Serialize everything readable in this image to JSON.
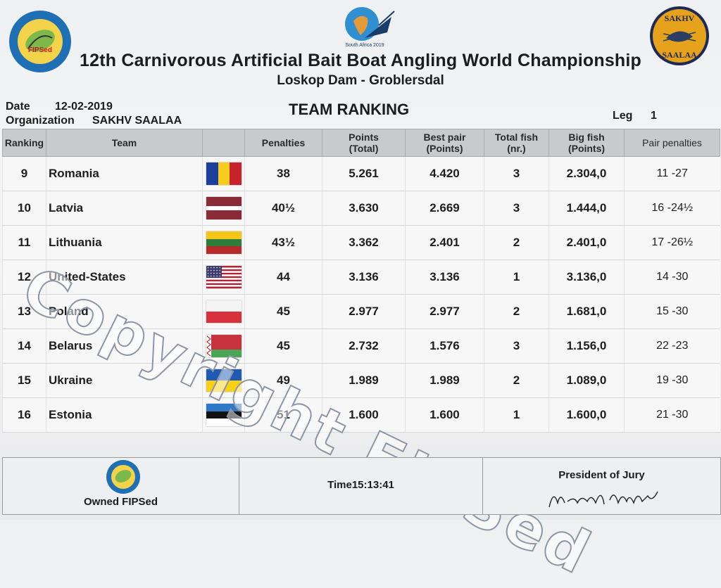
{
  "header": {
    "title": "12th Carnivorous Artificial Bait Boat Angling World Championship",
    "subtitle": "Loskop Dam - Groblersdal",
    "logo_left_text": "FIPSed",
    "logo_right_top": "SAKHV",
    "logo_right_bottom": "SAALAA",
    "logo_center_text": "South Africa 2019"
  },
  "meta": {
    "date_label": "Date",
    "date_value": "12-02-2019",
    "org_label": "Organization",
    "org_value": "SAKHV SAALAA",
    "heading": "TEAM RANKING",
    "leg_label": "Leg",
    "leg_value": "1"
  },
  "table": {
    "headers": {
      "ranking": "Ranking",
      "team": "Team",
      "penalties": "Penalties",
      "points_line1": "Points",
      "points_line2": "(Total)",
      "bestpair_line1": "Best pair",
      "bestpair_line2": "(Points)",
      "totalfish_line1": "Total fish",
      "totalfish_line2": "(nr.)",
      "bigfish_line1": "Big fish",
      "bigfish_line2": "(Points)",
      "pairpen": "Pair penalties"
    },
    "rows": [
      {
        "rank": "9",
        "team": "Romania",
        "flag": "romania-flag",
        "penalties": "38",
        "points": "5.261",
        "best_pair": "4.420",
        "total_fish": "3",
        "big_fish": "2.304,0",
        "pair_penalties": "11 -27"
      },
      {
        "rank": "10",
        "team": "Latvia",
        "flag": "latvia-flag",
        "penalties": "40½",
        "points": "3.630",
        "best_pair": "2.669",
        "total_fish": "3",
        "big_fish": "1.444,0",
        "pair_penalties": "16 -24½"
      },
      {
        "rank": "11",
        "team": "Lithuania",
        "flag": "lithuania-flag",
        "penalties": "43½",
        "points": "3.362",
        "best_pair": "2.401",
        "total_fish": "2",
        "big_fish": "2.401,0",
        "pair_penalties": "17 -26½"
      },
      {
        "rank": "12",
        "team": "United-States",
        "flag": "usa-flag",
        "penalties": "44",
        "points": "3.136",
        "best_pair": "3.136",
        "total_fish": "1",
        "big_fish": "3.136,0",
        "pair_penalties": "14 -30"
      },
      {
        "rank": "13",
        "team": "Poland",
        "flag": "poland-flag",
        "penalties": "45",
        "points": "2.977",
        "best_pair": "2.977",
        "total_fish": "2",
        "big_fish": "1.681,0",
        "pair_penalties": "15 -30"
      },
      {
        "rank": "14",
        "team": "Belarus",
        "flag": "belarus-flag",
        "penalties": "45",
        "points": "2.732",
        "best_pair": "1.576",
        "total_fish": "3",
        "big_fish": "1.156,0",
        "pair_penalties": "22 -23"
      },
      {
        "rank": "15",
        "team": "Ukraine",
        "flag": "ukraine-flag",
        "penalties": "49",
        "points": "1.989",
        "best_pair": "1.989",
        "total_fish": "2",
        "big_fish": "1.089,0",
        "pair_penalties": "19 -30"
      },
      {
        "rank": "16",
        "team": "Estonia",
        "flag": "estonia-flag",
        "penalties": "51",
        "points": "1.600",
        "best_pair": "1.600",
        "total_fish": "1",
        "big_fish": "1.600,0",
        "pair_penalties": "21 -30"
      }
    ]
  },
  "watermark": "Copyright FIPSed",
  "footer": {
    "owned": "Owned FIPSed",
    "time": "Time15:13:41",
    "president": "President of Jury"
  },
  "colors": {
    "header_bg": "#c9cacc",
    "page_bg": "#f0f1f3",
    "logo_blue": "#1f6fb4",
    "logo_gold": "#e6a21a"
  }
}
